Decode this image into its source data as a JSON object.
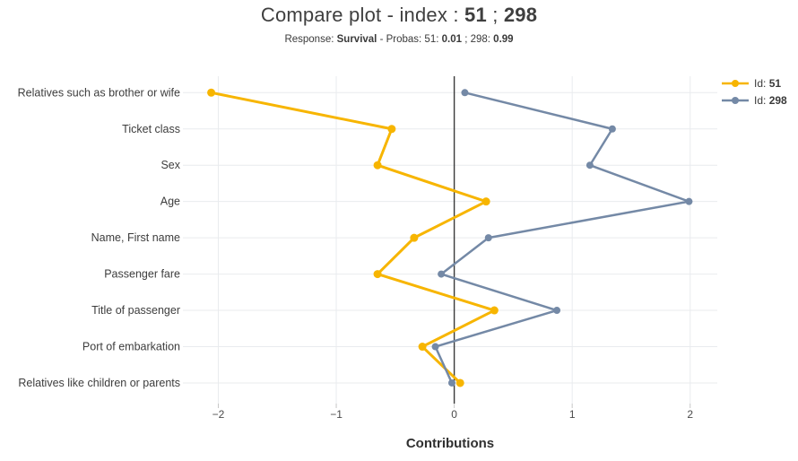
{
  "header": {
    "title_prefix": "Compare plot - index : ",
    "id_1": "51",
    "title_separator": " ; ",
    "id_2": "298"
  },
  "subtitle": {
    "s1": "Response: ",
    "s2": "Survival",
    "s3": " - Probas: 51: ",
    "s4": "0.01",
    "s5": " ; 298: ",
    "s6": "0.99"
  },
  "colors": {
    "gridline": "#e9ebee",
    "zero_line": "#3a3a3a",
    "tick_mark": "#c6c6c6",
    "tick_text": "#4a4a4a",
    "category_text": "#3d3d3d"
  },
  "chart_data": {
    "type": "line",
    "orientation": "horizontal-categories",
    "title": "Compare plot - index : 51 ; 298",
    "subtitle": "Response: Survival - Probas: 51: 0.01 ; 298: 0.99",
    "xlabel": "Contributions",
    "ylabel": "",
    "grid": true,
    "zero_line": true,
    "legend_position": "top-right",
    "xlim": [
      -2.3,
      2.23
    ],
    "xticks": {
      "values": [
        -2,
        -1,
        0,
        1,
        2
      ],
      "labels": [
        "−2",
        "−1",
        "0",
        "1",
        "2"
      ]
    },
    "categories": [
      "Relatives such as brother or wife",
      "Ticket class",
      "Sex",
      "Age",
      "Name, First name",
      "Passenger fare",
      "Title of passenger",
      "Port of embarkation",
      "Relatives like children or parents"
    ],
    "series": [
      {
        "name": "Id: 51",
        "legend_prefix": "Id: ",
        "id": "51",
        "color": "#f7b500",
        "line_width": 3,
        "marker_radius": 4.5,
        "values": [
          -2.06,
          -0.53,
          -0.65,
          0.27,
          -0.34,
          -0.65,
          0.34,
          -0.27,
          0.05
        ]
      },
      {
        "name": "Id: 298",
        "legend_prefix": "Id: ",
        "id": "298",
        "color": "#7489a6",
        "line_width": 2.5,
        "marker_radius": 4,
        "values": [
          0.09,
          1.34,
          1.15,
          1.99,
          0.29,
          -0.11,
          0.87,
          -0.16,
          -0.02
        ]
      }
    ]
  }
}
